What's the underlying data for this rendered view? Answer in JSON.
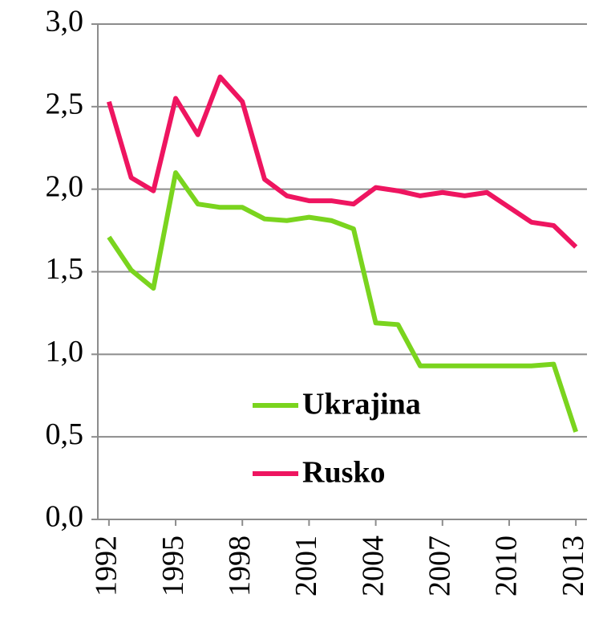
{
  "chart_data": {
    "type": "line",
    "x": [
      1992,
      1993,
      1994,
      1995,
      1996,
      1997,
      1998,
      1999,
      2000,
      2001,
      2002,
      2003,
      2004,
      2005,
      2006,
      2007,
      2008,
      2009,
      2010,
      2011,
      2012,
      2013
    ],
    "series": [
      {
        "name": "Ukrajina",
        "color": "#7ad41e",
        "values": [
          1.71,
          1.51,
          1.4,
          2.1,
          1.91,
          1.89,
          1.89,
          1.82,
          1.81,
          1.83,
          1.81,
          1.76,
          1.19,
          1.18,
          0.93,
          0.93,
          0.93,
          0.93,
          0.93,
          0.93,
          0.94,
          0.53
        ]
      },
      {
        "name": "Rusko",
        "color": "#ee1560",
        "values": [
          2.53,
          2.07,
          1.99,
          2.55,
          2.33,
          2.68,
          2.53,
          2.06,
          1.96,
          1.93,
          1.93,
          1.91,
          2.01,
          1.99,
          1.96,
          1.98,
          1.96,
          1.98,
          1.89,
          1.8,
          1.78,
          1.65
        ]
      }
    ],
    "xlim": [
      1991.5,
      2013.5
    ],
    "xticks": [
      1992,
      1995,
      1998,
      2001,
      2004,
      2007,
      2010,
      2013
    ],
    "ylim": [
      0,
      3
    ],
    "yticks": [
      {
        "value": 0,
        "label": "0,0"
      },
      {
        "value": 0.5,
        "label": "0,5"
      },
      {
        "value": 1,
        "label": "1,0"
      },
      {
        "value": 1.5,
        "label": "1,5"
      },
      {
        "value": 2,
        "label": "2,0"
      },
      {
        "value": 2.5,
        "label": "2,5"
      },
      {
        "value": 3,
        "label": "3,0"
      }
    ],
    "grid": true,
    "legend": "lower right"
  }
}
